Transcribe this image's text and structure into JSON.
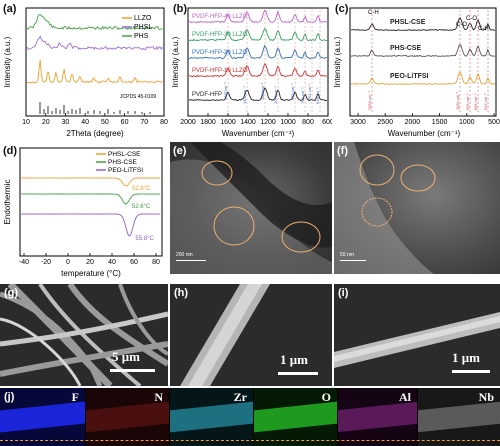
{
  "panels": {
    "a": {
      "label": "(a)",
      "chart_data": {
        "type": "line",
        "xlabel": "2Theta (degree)",
        "ylabel": "Intensity (a.u.)",
        "xlim": [
          10,
          80
        ],
        "xticks": [
          "10",
          "20",
          "30",
          "40",
          "50",
          "60",
          "70",
          "80"
        ],
        "series": [
          {
            "name": "LLZO",
            "color": "#f0a030"
          },
          {
            "name": "PHSL",
            "color": "#a070d0"
          },
          {
            "name": "PHS",
            "color": "#40a040"
          }
        ],
        "reference": "JCPDS 45-0109"
      }
    },
    "b": {
      "label": "(b)",
      "chart_data": {
        "type": "line",
        "xlabel": "Wavenumber (cm⁻¹)",
        "ylabel": "Intensity (a.u.)",
        "xlim": [
          2000,
          600
        ],
        "xticks": [
          "2000",
          "1800",
          "1600",
          "1400",
          "1200",
          "1000",
          "800",
          "600"
        ],
        "series": [
          {
            "name": "PVDF-HFP-40 LLZO",
            "color": "#c060d0"
          },
          {
            "name": "PVDF-HFP-30 LLZO",
            "color": "#30a060"
          },
          {
            "name": "PVDF-HFP-20 LLZO",
            "color": "#3070c0"
          },
          {
            "name": "PVDF-HFP-10 LLZO",
            "color": "#d03030"
          },
          {
            "name": "PVDF-HFP",
            "color": "#222222"
          }
        ],
        "annotations": [
          "1667cm⁻¹",
          "1401cm⁻¹",
          "1180cm⁻¹",
          "1071cm⁻¹",
          "875 cm⁻¹",
          "795 cm⁻¹",
          "761 cm⁻¹",
          "614 cm⁻¹"
        ]
      }
    },
    "c": {
      "label": "(c)",
      "chart_data": {
        "type": "line",
        "xlabel": "Wavenumber (cm⁻¹)",
        "ylabel": "Intensity (a.u.)",
        "xticks": [
          "3000",
          "2500",
          "2000",
          "1500",
          "1000",
          "500"
        ],
        "series": [
          {
            "name": "PHSL-CSE",
            "color": "#222222"
          },
          {
            "name": "PHS-CSE",
            "color": "#555555"
          },
          {
            "name": "PEO-LiTFSI",
            "color": "#f0a030"
          }
        ],
        "annotations": [
          "C-H",
          "C-O",
          "C-O",
          "C-H",
          "2853 cm⁻¹",
          "1100 cm⁻¹",
          "955 cm⁻¹",
          "835 cm⁻¹",
          "516 cm⁻¹"
        ]
      }
    },
    "d": {
      "label": "(d)",
      "chart_data": {
        "type": "line",
        "xlabel": "temperature (°C)",
        "ylabel": "Endothermic",
        "xlim": [
          -40,
          80
        ],
        "xticks": [
          "-40",
          "-20",
          "0",
          "20",
          "40",
          "60",
          "80"
        ],
        "series": [
          {
            "name": "PHSL-CSE",
            "color": "#f0a030",
            "peak": 52.8
          },
          {
            "name": "PHS-CSE",
            "color": "#40a040",
            "peak": 52.6
          },
          {
            "name": "PEO-LiTFSI",
            "color": "#9060d0",
            "peak": 55.8
          }
        ],
        "annotations": [
          "52.8°C",
          "52.6°C",
          "55.8°C"
        ]
      }
    },
    "e": {
      "label": "(e)",
      "scale": "200 nm"
    },
    "f": {
      "label": "(f)",
      "scale": "50 nm"
    },
    "g": {
      "label": "(g)",
      "scale": "5 μm"
    },
    "h": {
      "label": "(h)",
      "scale": "1 μm"
    },
    "i": {
      "label": "(i)",
      "scale": "1 μm"
    },
    "j": {
      "label": "(j)",
      "elements": [
        {
          "name": "F",
          "color": "#2a38ff"
        },
        {
          "name": "N",
          "color": "#c02020"
        },
        {
          "name": "Zr",
          "color": "#30c0d0"
        },
        {
          "name": "O",
          "color": "#30d030"
        },
        {
          "name": "Al",
          "color": "#c030c0"
        },
        {
          "name": "Nb",
          "color": "#c8c8c8"
        }
      ]
    }
  }
}
